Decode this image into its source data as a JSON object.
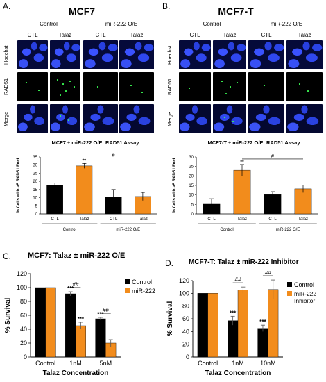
{
  "panels": {
    "A": {
      "label": "A.",
      "title": "MCF7"
    },
    "B": {
      "label": "B.",
      "title": "MCF7-T"
    },
    "C": {
      "label": "C.",
      "title": "MCF7: Talaz ± miR-222 O/E"
    },
    "D": {
      "label": "D.",
      "title": "MCF7-T: Talaz ± miR-222 Inhibitor"
    }
  },
  "micro": {
    "groups": [
      "Control",
      "miR-222 O/E"
    ],
    "cols": [
      "CTL",
      "Talaz",
      "CTL",
      "Talaz"
    ],
    "rows": [
      "Hoechst",
      "RAD51",
      "Merge"
    ]
  },
  "chart_data": [
    {
      "type": "bar",
      "id": "A-bar",
      "title": "MCF7 ± miR-222 O/E: RAD51 Assay",
      "ylabel": "% Cells with >5 RAD51 Foci",
      "categories": [
        "CTL",
        "Talaz",
        "CTL",
        "Talaz"
      ],
      "groups": [
        "Control",
        "miR-222 O/E"
      ],
      "values": [
        17.5,
        29.5,
        10.5,
        10.7
      ],
      "errors": [
        1.5,
        1.5,
        4.5,
        2.5
      ],
      "colors": [
        "#000000",
        "#f28c1c",
        "#000000",
        "#f28c1c"
      ],
      "ylim": [
        0,
        35
      ],
      "yticks": [
        "0",
        "5",
        "10",
        "15",
        "20",
        "25",
        "30",
        "35"
      ],
      "annotations": [
        {
          "text": "**",
          "bar": 1
        },
        {
          "text": "#",
          "from": 1,
          "to": 3
        }
      ]
    },
    {
      "type": "bar",
      "id": "B-bar",
      "title": "MCF7-T ± miR-222 O/E: RAD51 Assay",
      "ylabel": "% Cells with >5 RAD51 Foci",
      "categories": [
        "CTL",
        "Talaz",
        "CTL",
        "Talaz"
      ],
      "groups": [
        "Control",
        "miR-222 O/E"
      ],
      "values": [
        5.5,
        23,
        10.2,
        13.2
      ],
      "errors": [
        2.5,
        3,
        1.5,
        2
      ],
      "colors": [
        "#000000",
        "#f28c1c",
        "#000000",
        "#f28c1c"
      ],
      "ylim": [
        0,
        30
      ],
      "yticks": [
        "0",
        "5",
        "10",
        "15",
        "20",
        "25",
        "30"
      ],
      "annotations": [
        {
          "text": "**",
          "bar": 1
        },
        {
          "text": "#",
          "from": 1,
          "to": 3
        }
      ]
    },
    {
      "type": "bar",
      "id": "C-bar",
      "ylabel": "% Survival",
      "xlabel": "Talaz Concentration",
      "categories": [
        "Control",
        "1nM",
        "5nM"
      ],
      "series": [
        {
          "name": "Control",
          "color": "#000000",
          "values": [
            100,
            91,
            55
          ],
          "errors": [
            0,
            3,
            2
          ]
        },
        {
          "name": "miR-222",
          "color": "#f28c1c",
          "values": [
            100,
            45,
            20
          ],
          "errors": [
            0,
            5,
            5
          ]
        }
      ],
      "ylim": [
        0,
        120
      ],
      "yticks": [
        "0",
        "20",
        "40",
        "60",
        "80",
        "100",
        "120"
      ],
      "annotations": [
        "***",
        "***",
        "***",
        "##",
        "##"
      ],
      "legend": "top-right"
    },
    {
      "type": "bar",
      "id": "D-bar",
      "ylabel": "% Survival",
      "xlabel": "Talaz Concentration",
      "categories": [
        "Control",
        "1nM",
        "10nM"
      ],
      "series": [
        {
          "name": "Control",
          "color": "#000000",
          "values": [
            100,
            57,
            45
          ],
          "errors": [
            0,
            7,
            5
          ]
        },
        {
          "name": "miR-222 Inhibitor",
          "color": "#f28c1c",
          "values": [
            100,
            105,
            106
          ],
          "errors": [
            0,
            5,
            15
          ]
        }
      ],
      "ylim": [
        0,
        120
      ],
      "yticks": [
        "0",
        "20",
        "40",
        "60",
        "80",
        "100",
        "120"
      ],
      "annotations": [
        "***",
        "***",
        "##",
        "##"
      ],
      "legend": "top-right"
    }
  ]
}
